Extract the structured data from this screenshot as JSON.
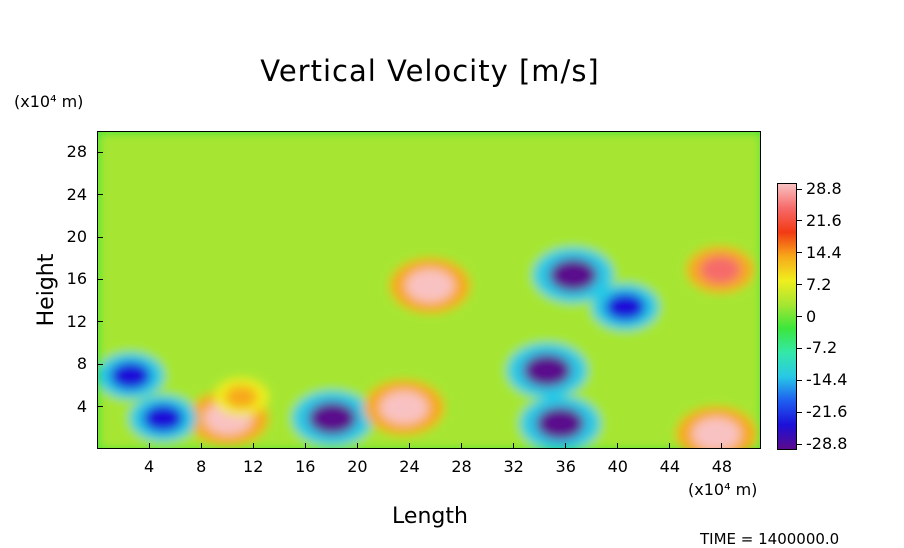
{
  "chart_data": {
    "type": "heatmap",
    "title": "Vertical Velocity [m/s]",
    "xlabel": "Length",
    "ylabel": "Height",
    "x_unit": "(x10⁴ m)",
    "y_unit": "(x10⁴ m)",
    "xlim": [
      0,
      51
    ],
    "ylim": [
      0,
      30
    ],
    "x_ticks": [
      "4",
      "8",
      "12",
      "16",
      "20",
      "24",
      "28",
      "32",
      "36",
      "40",
      "44",
      "48"
    ],
    "y_ticks": [
      "4",
      "8",
      "12",
      "16",
      "20",
      "24",
      "28"
    ],
    "colorbar": {
      "min": -28.8,
      "max": 28.8,
      "labels": [
        "28.8",
        "21.6",
        "14.4",
        "7.2",
        "0",
        "-7.2",
        "-14.4",
        "-21.6",
        "-28.8"
      ],
      "colors": [
        "#5a0a8c",
        "#1c10d8",
        "#1e5ef0",
        "#28c8e6",
        "#34e8a8",
        "#3ce63c",
        "#a6e632",
        "#f0ee1e",
        "#f7a81a",
        "#f23a14",
        "#f66a6a",
        "#f9c2c2"
      ]
    },
    "background_value": 0,
    "features": [
      {
        "x": 10,
        "y": 3.0,
        "value": 28.8
      },
      {
        "x": 11,
        "y": 5.0,
        "value": 14.4
      },
      {
        "x": 18,
        "y": 3.0,
        "value": -28.8
      },
      {
        "x": 23.5,
        "y": 4.0,
        "value": 28.8
      },
      {
        "x": 25.5,
        "y": 15.5,
        "value": 28.8
      },
      {
        "x": 35.5,
        "y": 2.5,
        "value": -28.8
      },
      {
        "x": 34.5,
        "y": 7.5,
        "value": -28.8
      },
      {
        "x": 36.5,
        "y": 16.5,
        "value": -28.8
      },
      {
        "x": 2.5,
        "y": 7.0,
        "value": -21.6
      },
      {
        "x": 5,
        "y": 3.0,
        "value": -21.6
      },
      {
        "x": 47.5,
        "y": 1.5,
        "value": 28.8
      },
      {
        "x": 40.5,
        "y": 13.5,
        "value": -21.6
      },
      {
        "x": 47.8,
        "y": 17.0,
        "value": 21.6
      }
    ]
  },
  "footer": {
    "time_text": "TIME  =  1400000.0"
  }
}
